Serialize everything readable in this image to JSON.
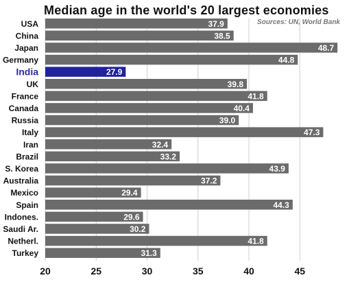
{
  "chart_data": {
    "type": "bar",
    "orientation": "horizontal",
    "title": "Median age in the world's 20 largest economies",
    "source": "Sources: UN, World Bank",
    "categories": [
      "USA",
      "China",
      "Japan",
      "Germany",
      "India",
      "UK",
      "France",
      "Canada",
      "Russia",
      "Italy",
      "Iran",
      "Brazil",
      "S. Korea",
      "Australia",
      "Mexico",
      "Spain",
      "Indones.",
      "Saudi Ar.",
      "Netherl.",
      "Turkey"
    ],
    "values": [
      37.9,
      38.5,
      48.7,
      44.8,
      27.9,
      39.8,
      41.8,
      40.4,
      39.0,
      47.3,
      32.4,
      33.2,
      43.9,
      37.2,
      29.4,
      44.3,
      29.6,
      30.2,
      41.8,
      31.3
    ],
    "value_labels": [
      "37.9",
      "38.5",
      "48.7",
      "44.8",
      "27.9",
      "39.8",
      "41.8",
      "40.4",
      "39.0",
      "47.3",
      "32.4",
      "33.2",
      "43.9",
      "37.2",
      "29.4",
      "44.3",
      "29.6",
      "30.2",
      "41.8",
      "31.3"
    ],
    "highlight": "India",
    "xlim": [
      20,
      49
    ],
    "xticks": [
      20,
      25,
      30,
      35,
      40,
      45
    ],
    "xtick_labels": [
      "20",
      "25",
      "30",
      "35",
      "40",
      "45"
    ],
    "grid": true,
    "colors": {
      "bar": "#6b6b6b",
      "highlight_bar": "#2222a0",
      "highlight_label": "#2a2aa8",
      "grid": "#cfcfcf"
    }
  }
}
